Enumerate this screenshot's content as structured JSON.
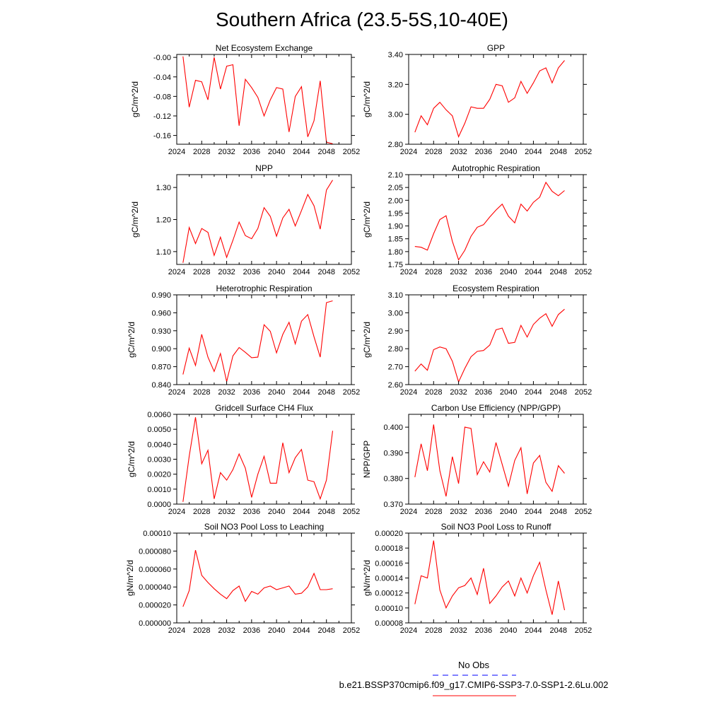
{
  "title": "Southern Africa (23.5-5S,10-40E)",
  "legend": {
    "obs_label": "No Obs",
    "obs_color": "#0000ff",
    "model_label": "b.e21.BSSP370cmip6.f09_g17.CMIP6-SSP3-7.0-SSP1-2.6Lu.002",
    "model_color": "#ff0000"
  },
  "chart_data": [
    {
      "type": "line",
      "title": "Net Ecosystem Exchange",
      "ylabel": "gC/m^2/d",
      "xlim": [
        2024,
        2052
      ],
      "ylim": [
        -0.178,
        0.006
      ],
      "xticks": [
        "2024",
        "2028",
        "2032",
        "2036",
        "2040",
        "2044",
        "2048",
        "2052"
      ],
      "yticks": [
        0.0,
        -0.04,
        -0.08,
        -0.12,
        -0.16
      ],
      "yticklabels": [
        "-0.00",
        "-0.04",
        "-0.08",
        "-0.12",
        "-0.16"
      ],
      "series": [
        {
          "x": [
            2025,
            2026,
            2027,
            2028,
            2029,
            2030,
            2031,
            2032,
            2033,
            2034,
            2035,
            2036,
            2037,
            2038,
            2039,
            2040,
            2041,
            2042,
            2043,
            2044,
            2045,
            2046,
            2047,
            2048,
            2049
          ],
          "values": [
            0.002,
            -0.102,
            -0.047,
            -0.05,
            -0.087,
            0.0,
            -0.065,
            -0.018,
            -0.015,
            -0.14,
            -0.045,
            -0.062,
            -0.082,
            -0.12,
            -0.087,
            -0.062,
            -0.065,
            -0.153,
            -0.08,
            -0.06,
            -0.163,
            -0.13,
            -0.048,
            -0.174,
            -0.177
          ]
        }
      ]
    },
    {
      "type": "line",
      "title": "GPP",
      "ylabel": "gC/m^2/d",
      "xlim": [
        2024,
        2052
      ],
      "ylim": [
        2.8,
        3.4
      ],
      "xticks": [
        "2024",
        "2028",
        "2032",
        "2036",
        "2040",
        "2044",
        "2048",
        "2052"
      ],
      "yticks": [
        2.8,
        3.0,
        3.2,
        3.4
      ],
      "yticklabels": [
        "2.80",
        "3.00",
        "3.20",
        "3.40"
      ],
      "series": [
        {
          "x": [
            2025,
            2026,
            2027,
            2028,
            2029,
            2030,
            2031,
            2032,
            2033,
            2034,
            2035,
            2036,
            2037,
            2038,
            2039,
            2040,
            2041,
            2042,
            2043,
            2044,
            2045,
            2046,
            2047,
            2048,
            2049
          ],
          "values": [
            2.88,
            2.99,
            2.93,
            3.04,
            3.08,
            3.03,
            2.99,
            2.85,
            2.94,
            3.05,
            3.04,
            3.04,
            3.1,
            3.2,
            3.19,
            3.08,
            3.11,
            3.22,
            3.14,
            3.21,
            3.29,
            3.31,
            3.21,
            3.31,
            3.36
          ]
        }
      ]
    },
    {
      "type": "line",
      "title": "NPP",
      "ylabel": "gC/m^2/d",
      "xlim": [
        2024,
        2052
      ],
      "ylim": [
        1.06,
        1.34
      ],
      "xticks": [
        "2024",
        "2028",
        "2032",
        "2036",
        "2040",
        "2044",
        "2048",
        "2052"
      ],
      "yticks": [
        1.1,
        1.2,
        1.3
      ],
      "yticklabels": [
        "1.10",
        "1.20",
        "1.30"
      ],
      "series": [
        {
          "x": [
            2025,
            2026,
            2027,
            2028,
            2029,
            2030,
            2031,
            2032,
            2033,
            2034,
            2035,
            2036,
            2037,
            2038,
            2039,
            2040,
            2041,
            2042,
            2043,
            2044,
            2045,
            2046,
            2047,
            2048,
            2049
          ],
          "values": [
            1.065,
            1.175,
            1.125,
            1.172,
            1.16,
            1.088,
            1.145,
            1.082,
            1.135,
            1.192,
            1.15,
            1.14,
            1.172,
            1.237,
            1.21,
            1.148,
            1.205,
            1.232,
            1.18,
            1.228,
            1.278,
            1.243,
            1.17,
            1.292,
            1.323
          ]
        }
      ]
    },
    {
      "type": "line",
      "title": "Autotrophic Respiration",
      "ylabel": "gC/m^2/d",
      "xlim": [
        2024,
        2052
      ],
      "ylim": [
        1.75,
        2.1
      ],
      "xticks": [
        "2024",
        "2028",
        "2032",
        "2036",
        "2040",
        "2044",
        "2048",
        "2052"
      ],
      "yticks": [
        1.75,
        1.8,
        1.85,
        1.9,
        1.95,
        2.0,
        2.05,
        2.1
      ],
      "yticklabels": [
        "1.75",
        "1.80",
        "1.85",
        "1.90",
        "1.95",
        "2.00",
        "2.05",
        "2.10"
      ],
      "series": [
        {
          "x": [
            2025,
            2026,
            2027,
            2028,
            2029,
            2030,
            2031,
            2032,
            2033,
            2034,
            2035,
            2036,
            2037,
            2038,
            2039,
            2040,
            2041,
            2042,
            2043,
            2044,
            2045,
            2046,
            2047,
            2048,
            2049
          ],
          "values": [
            1.82,
            1.817,
            1.806,
            1.87,
            1.925,
            1.94,
            1.84,
            1.768,
            1.805,
            1.86,
            1.895,
            1.905,
            1.935,
            1.962,
            1.985,
            1.938,
            1.912,
            1.985,
            1.958,
            1.992,
            2.012,
            2.07,
            2.035,
            2.018,
            2.038
          ]
        }
      ]
    },
    {
      "type": "line",
      "title": "Heterotrophic Respiration",
      "ylabel": "gC/m^2/d",
      "xlim": [
        2024,
        2052
      ],
      "ylim": [
        0.84,
        0.99
      ],
      "xticks": [
        "2024",
        "2028",
        "2032",
        "2036",
        "2040",
        "2044",
        "2048",
        "2052"
      ],
      "yticks": [
        0.84,
        0.87,
        0.9,
        0.93,
        0.96,
        0.99
      ],
      "yticklabels": [
        "0.840",
        "0.870",
        "0.900",
        "0.930",
        "0.960",
        "0.990"
      ],
      "series": [
        {
          "x": [
            2025,
            2026,
            2027,
            2028,
            2029,
            2030,
            2031,
            2032,
            2033,
            2034,
            2035,
            2036,
            2037,
            2038,
            2039,
            2040,
            2041,
            2042,
            2043,
            2044,
            2045,
            2046,
            2047,
            2048,
            2049
          ],
          "values": [
            0.857,
            0.901,
            0.872,
            0.924,
            0.886,
            0.862,
            0.892,
            0.845,
            0.888,
            0.902,
            0.894,
            0.885,
            0.886,
            0.94,
            0.929,
            0.893,
            0.924,
            0.944,
            0.908,
            0.946,
            0.957,
            0.92,
            0.886,
            0.977,
            0.98
          ]
        }
      ]
    },
    {
      "type": "line",
      "title": "Ecosystem Respiration",
      "ylabel": "gC/m^2/d",
      "xlim": [
        2024,
        2052
      ],
      "ylim": [
        2.6,
        3.1
      ],
      "xticks": [
        "2024",
        "2028",
        "2032",
        "2036",
        "2040",
        "2044",
        "2048",
        "2052"
      ],
      "yticks": [
        2.6,
        2.7,
        2.8,
        2.9,
        3.0,
        3.1
      ],
      "yticklabels": [
        "2.60",
        "2.70",
        "2.80",
        "2.90",
        "3.00",
        "3.10"
      ],
      "series": [
        {
          "x": [
            2025,
            2026,
            2027,
            2028,
            2029,
            2030,
            2031,
            2032,
            2033,
            2034,
            2035,
            2036,
            2037,
            2038,
            2039,
            2040,
            2041,
            2042,
            2043,
            2044,
            2045,
            2046,
            2047,
            2048,
            2049
          ],
          "values": [
            2.675,
            2.715,
            2.68,
            2.795,
            2.81,
            2.8,
            2.73,
            2.615,
            2.69,
            2.755,
            2.785,
            2.79,
            2.82,
            2.905,
            2.915,
            2.83,
            2.835,
            2.93,
            2.865,
            2.935,
            2.97,
            2.995,
            2.925,
            2.99,
            3.02
          ]
        }
      ]
    },
    {
      "type": "line",
      "title": "Gridcell Surface CH4 Flux",
      "ylabel": "gC/m^2/d",
      "xlim": [
        2024,
        2052
      ],
      "ylim": [
        0.0,
        0.006
      ],
      "xticks": [
        "2024",
        "2028",
        "2032",
        "2036",
        "2040",
        "2044",
        "2048",
        "2052"
      ],
      "yticks": [
        0.0,
        0.001,
        0.002,
        0.003,
        0.004,
        0.005,
        0.006
      ],
      "yticklabels": [
        "0.0000",
        "0.0010",
        "0.0020",
        "0.0030",
        "0.0040",
        "0.0050",
        "0.0060"
      ],
      "series": [
        {
          "x": [
            2025,
            2026,
            2027,
            2028,
            2029,
            2030,
            2031,
            2032,
            2033,
            2034,
            2035,
            2036,
            2037,
            2038,
            2039,
            2040,
            2041,
            2042,
            2043,
            2044,
            2045,
            2046,
            2047,
            2048,
            2049
          ],
          "values": [
            0.00015,
            0.0032,
            0.0058,
            0.0027,
            0.0036,
            0.00035,
            0.0021,
            0.0016,
            0.0023,
            0.00335,
            0.0024,
            0.00045,
            0.002,
            0.0032,
            0.0014,
            0.0014,
            0.0041,
            0.0021,
            0.0031,
            0.00365,
            0.0016,
            0.0015,
            0.00035,
            0.0016,
            0.0049
          ]
        }
      ]
    },
    {
      "type": "line",
      "title": "Carbon Use Efficiency (NPP/GPP)",
      "ylabel": "NPP/GPP",
      "xlim": [
        2024,
        2052
      ],
      "ylim": [
        0.37,
        0.405
      ],
      "xticks": [
        "2024",
        "2028",
        "2032",
        "2036",
        "2040",
        "2044",
        "2048",
        "2052"
      ],
      "yticks": [
        0.37,
        0.38,
        0.39,
        0.4
      ],
      "yticklabels": [
        "0.370",
        "0.380",
        "0.390",
        "0.400"
      ],
      "series": [
        {
          "x": [
            2025,
            2026,
            2027,
            2028,
            2029,
            2030,
            2031,
            2032,
            2033,
            2034,
            2035,
            2036,
            2037,
            2038,
            2039,
            2040,
            2041,
            2042,
            2043,
            2044,
            2045,
            2046,
            2047,
            2048,
            2049
          ],
          "values": [
            0.3805,
            0.3935,
            0.383,
            0.401,
            0.383,
            0.373,
            0.3885,
            0.378,
            0.4,
            0.3995,
            0.3815,
            0.3865,
            0.3825,
            0.394,
            0.3855,
            0.377,
            0.387,
            0.392,
            0.374,
            0.386,
            0.389,
            0.3785,
            0.375,
            0.385,
            0.382
          ]
        }
      ]
    },
    {
      "type": "line",
      "title": "Soil NO3 Pool Loss to Leaching",
      "ylabel": "gN/m^2/d",
      "xlim": [
        2024,
        2052
      ],
      "ylim": [
        0.0,
        0.0001
      ],
      "xticks": [
        "2024",
        "2028",
        "2032",
        "2036",
        "2040",
        "2044",
        "2048",
        "2052"
      ],
      "yticks": [
        0.0,
        2e-05,
        4e-05,
        6e-05,
        8e-05,
        0.0001
      ],
      "yticklabels": [
        "0.000000",
        "0.000020",
        "0.000040",
        "0.000060",
        "0.000080",
        "0.00010"
      ],
      "series": [
        {
          "x": [
            2025,
            2026,
            2027,
            2028,
            2029,
            2030,
            2031,
            2032,
            2033,
            2034,
            2035,
            2036,
            2037,
            2038,
            2039,
            2040,
            2041,
            2042,
            2043,
            2044,
            2045,
            2046,
            2047,
            2048,
            2049
          ],
          "values": [
            1.8e-05,
            3.6e-05,
            8.1e-05,
            5.3e-05,
            4.5e-05,
            3.8e-05,
            3.2e-05,
            2.7e-05,
            3.6e-05,
            4.1e-05,
            2.4e-05,
            3.5e-05,
            3.2e-05,
            3.9e-05,
            4.1e-05,
            3.7e-05,
            3.9e-05,
            4.1e-05,
            3.2e-05,
            3.3e-05,
            4e-05,
            5.5e-05,
            3.7e-05,
            3.7e-05,
            3.8e-05
          ]
        }
      ]
    },
    {
      "type": "line",
      "title": "Soil NO3 Pool Loss to Runoff",
      "ylabel": "gN/m^2/d",
      "xlim": [
        2024,
        2052
      ],
      "ylim": [
        8e-05,
        0.0002
      ],
      "xticks": [
        "2024",
        "2028",
        "2032",
        "2036",
        "2040",
        "2044",
        "2048",
        "2052"
      ],
      "yticks": [
        8e-05,
        0.0001,
        0.00012,
        0.00014,
        0.00016,
        0.00018,
        0.0002
      ],
      "yticklabels": [
        "0.00008",
        "0.00010",
        "0.00012",
        "0.00014",
        "0.00016",
        "0.00018",
        "0.00020"
      ],
      "series": [
        {
          "x": [
            2025,
            2026,
            2027,
            2028,
            2029,
            2030,
            2031,
            2032,
            2033,
            2034,
            2035,
            2036,
            2037,
            2038,
            2039,
            2040,
            2041,
            2042,
            2043,
            2044,
            2045,
            2046,
            2047,
            2048,
            2049
          ],
          "values": [
            0.000105,
            0.000143,
            0.00014,
            0.00019,
            0.000124,
            0.0001,
            0.000116,
            0.000127,
            0.00013,
            0.00014,
            0.000118,
            0.000153,
            0.000106,
            0.000116,
            0.000128,
            0.000136,
            0.000116,
            0.00014,
            0.00012,
            0.000143,
            0.000161,
            0.000124,
            9.1e-05,
            0.000136,
            9.7e-05
          ]
        }
      ]
    }
  ]
}
